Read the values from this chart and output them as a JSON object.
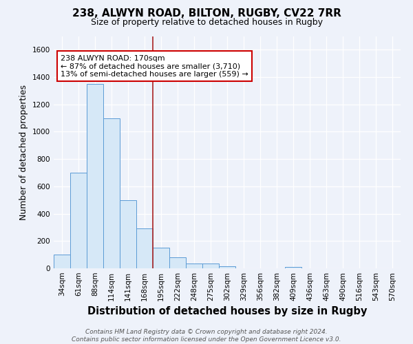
{
  "title": "238, ALWYN ROAD, BILTON, RUGBY, CV22 7RR",
  "subtitle": "Size of property relative to detached houses in Rugby",
  "xlabel": "Distribution of detached houses by size in Rugby",
  "ylabel": "Number of detached properties",
  "bar_labels": [
    "34sqm",
    "61sqm",
    "88sqm",
    "114sqm",
    "141sqm",
    "168sqm",
    "195sqm",
    "222sqm",
    "248sqm",
    "275sqm",
    "302sqm",
    "329sqm",
    "356sqm",
    "382sqm",
    "409sqm",
    "436sqm",
    "463sqm",
    "490sqm",
    "516sqm",
    "543sqm",
    "570sqm"
  ],
  "bar_values": [
    100,
    700,
    1350,
    1100,
    500,
    290,
    150,
    80,
    35,
    35,
    15,
    0,
    0,
    0,
    10,
    0,
    0,
    0,
    0,
    0,
    0
  ],
  "bar_color": "#d6e8f7",
  "bar_edge_color": "#5b9bd5",
  "ylim": [
    0,
    1700
  ],
  "yticks": [
    0,
    200,
    400,
    600,
    800,
    1000,
    1200,
    1400,
    1600
  ],
  "vline_x": 5.5,
  "vline_color": "#aa2222",
  "annotation_text": "238 ALWYN ROAD: 170sqm\n← 87% of detached houses are smaller (3,710)\n13% of semi-detached houses are larger (559) →",
  "annotation_box_color": "#ffffff",
  "annotation_box_edge": "#cc0000",
  "footer_line1": "Contains HM Land Registry data © Crown copyright and database right 2024.",
  "footer_line2": "Contains public sector information licensed under the Open Government Licence v3.0.",
  "bg_color": "#eef2fa",
  "plot_bg_color": "#eef2fa",
  "grid_color": "#ffffff",
  "title_fontsize": 11,
  "subtitle_fontsize": 9,
  "axis_label_fontsize": 9,
  "tick_fontsize": 7.5,
  "footer_fontsize": 6.5
}
